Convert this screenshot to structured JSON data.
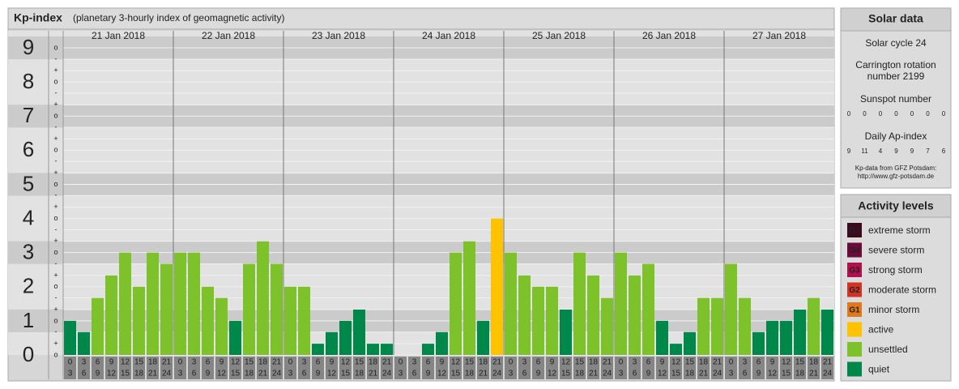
{
  "header": {
    "title": "Kp-index",
    "subtitle": "(planetary 3-hourly index of geomagnetic activity)"
  },
  "chart_data": {
    "type": "bar",
    "ylim": [
      0,
      9.5
    ],
    "yticks": [
      0,
      1,
      2,
      3,
      4,
      5,
      6,
      7,
      8,
      9
    ],
    "minor_ticks": [
      {
        "value": 0,
        "label": "o"
      },
      {
        "value": 0.33,
        "label": "+"
      },
      {
        "value": 0.67,
        "label": "-"
      },
      {
        "value": 1,
        "label": "o"
      },
      {
        "value": 1.33,
        "label": "+"
      },
      {
        "value": 1.67,
        "label": "-"
      },
      {
        "value": 2,
        "label": "o"
      },
      {
        "value": 2.33,
        "label": "+"
      },
      {
        "value": 2.67,
        "label": "-"
      },
      {
        "value": 3,
        "label": "o"
      },
      {
        "value": 3.33,
        "label": "+"
      },
      {
        "value": 3.67,
        "label": "-"
      },
      {
        "value": 4,
        "label": "o"
      },
      {
        "value": 4.33,
        "label": "+"
      },
      {
        "value": 4.67,
        "label": "-"
      },
      {
        "value": 5,
        "label": "o"
      },
      {
        "value": 5.33,
        "label": "+"
      },
      {
        "value": 5.67,
        "label": "-"
      },
      {
        "value": 6,
        "label": "o"
      },
      {
        "value": 6.33,
        "label": "+"
      },
      {
        "value": 6.67,
        "label": "-"
      },
      {
        "value": 7,
        "label": "o"
      },
      {
        "value": 7.33,
        "label": "+"
      },
      {
        "value": 7.67,
        "label": "-"
      },
      {
        "value": 8,
        "label": "o"
      },
      {
        "value": 8.33,
        "label": "+"
      },
      {
        "value": 8.67,
        "label": "-"
      },
      {
        "value": 9,
        "label": "o"
      }
    ],
    "intervals": [
      {
        "start": "0",
        "end": "3"
      },
      {
        "start": "3",
        "end": "6"
      },
      {
        "start": "6",
        "end": "9"
      },
      {
        "start": "9",
        "end": "12"
      },
      {
        "start": "12",
        "end": "15"
      },
      {
        "start": "15",
        "end": "18"
      },
      {
        "start": "18",
        "end": "21"
      },
      {
        "start": "21",
        "end": "24"
      }
    ],
    "days": [
      {
        "date": "21 Jan 2018",
        "values": [
          1,
          0.67,
          1.67,
          2.33,
          3,
          2,
          3,
          2.67
        ],
        "colors": [
          "#00884a",
          "#00884a",
          "#7dc22b",
          "#7dc22b",
          "#7dc22b",
          "#7dc22b",
          "#7dc22b",
          "#7dc22b"
        ]
      },
      {
        "date": "22 Jan 2018",
        "values": [
          3,
          3,
          2,
          1.67,
          1,
          2.67,
          3.33,
          2.67
        ],
        "colors": [
          "#7dc22b",
          "#7dc22b",
          "#7dc22b",
          "#7dc22b",
          "#00884a",
          "#7dc22b",
          "#7dc22b",
          "#7dc22b"
        ]
      },
      {
        "date": "23 Jan 2018",
        "values": [
          2,
          2,
          0.33,
          0.67,
          1,
          1.33,
          0.33,
          0.33
        ],
        "colors": [
          "#7dc22b",
          "#7dc22b",
          "#00884a",
          "#00884a",
          "#00884a",
          "#00884a",
          "#00884a",
          "#00884a"
        ]
      },
      {
        "date": "24 Jan 2018",
        "values": [
          0,
          0,
          0.33,
          0.67,
          3,
          3.33,
          1,
          4
        ],
        "colors": [
          "#00884a",
          "#00884a",
          "#00884a",
          "#00884a",
          "#7dc22b",
          "#7dc22b",
          "#00884a",
          "#fdc300"
        ]
      },
      {
        "date": "25 Jan 2018",
        "values": [
          3,
          2.33,
          2,
          2,
          1.33,
          3,
          2.33,
          1.67
        ],
        "colors": [
          "#7dc22b",
          "#7dc22b",
          "#7dc22b",
          "#7dc22b",
          "#00884a",
          "#7dc22b",
          "#7dc22b",
          "#7dc22b"
        ]
      },
      {
        "date": "26 Jan 2018",
        "values": [
          3,
          2.33,
          2.67,
          1,
          0.33,
          0.67,
          1.67,
          1.67
        ],
        "colors": [
          "#7dc22b",
          "#7dc22b",
          "#7dc22b",
          "#00884a",
          "#00884a",
          "#00884a",
          "#7dc22b",
          "#7dc22b"
        ]
      },
      {
        "date": "27 Jan 2018",
        "values": [
          2.67,
          1.67,
          0.67,
          1,
          1,
          1.33,
          1.67,
          1.33
        ],
        "colors": [
          "#7dc22b",
          "#7dc22b",
          "#00884a",
          "#00884a",
          "#00884a",
          "#00884a",
          "#7dc22b",
          "#00884a"
        ]
      }
    ]
  },
  "solar": {
    "title": "Solar data",
    "cycle": "Solar cycle 24",
    "carrington": [
      "Carrington rotation",
      "number 2199"
    ],
    "sunspot_title": "Sunspot number",
    "sunspots": [
      0,
      0,
      0,
      0,
      0,
      0,
      0
    ],
    "ap_title": "Daily Ap-index",
    "ap": [
      9,
      11,
      4,
      9,
      9,
      7,
      6
    ],
    "source": [
      "Kp-data from GFZ Potsdam:",
      "http://www.gfz-potsdam.de"
    ]
  },
  "levels": {
    "title": "Activity levels",
    "items": [
      {
        "code": "G5",
        "label": "extreme storm",
        "color": "#3e0a1e"
      },
      {
        "code": "G4",
        "label": "severe storm",
        "color": "#6c0a3c"
      },
      {
        "code": "G3",
        "label": "strong storm",
        "color": "#b0104e"
      },
      {
        "code": "G2",
        "label": "moderate storm",
        "color": "#cf3424"
      },
      {
        "code": "G1",
        "label": "minor storm",
        "color": "#e0781c"
      },
      {
        "label": "active",
        "color": "#fdc300"
      },
      {
        "label": "unsettled",
        "color": "#7dc22b"
      },
      {
        "label": "quiet",
        "color": "#00884a"
      }
    ]
  }
}
